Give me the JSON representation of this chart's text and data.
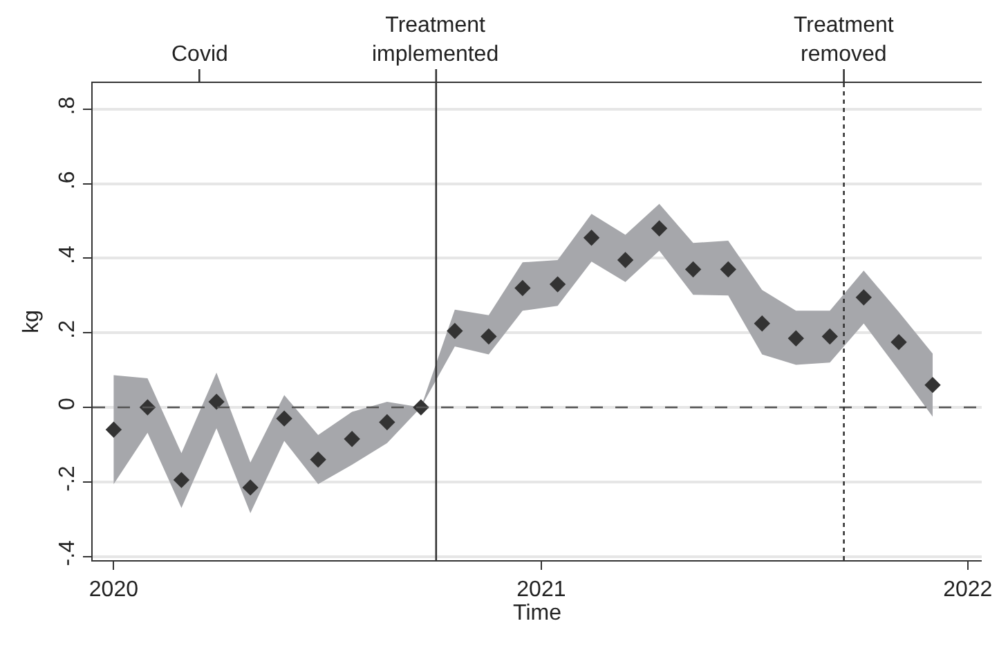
{
  "chart_data": {
    "type": "scatter",
    "xlabel": "Time",
    "ylabel": "kg",
    "x": [
      "2020-01-01",
      "2020-01-30",
      "2020-02-28",
      "2020-03-29",
      "2020-04-27",
      "2020-05-26",
      "2020-06-24",
      "2020-07-23",
      "2020-08-22",
      "2020-09-20",
      "2020-10-19",
      "2020-11-17",
      "2020-12-16",
      "2021-01-15",
      "2021-02-13",
      "2021-03-14",
      "2021-04-12",
      "2021-05-11",
      "2021-06-10",
      "2021-07-09",
      "2021-08-07",
      "2021-09-05",
      "2021-10-04",
      "2021-11-03",
      "2021-12-02"
    ],
    "series": [
      {
        "color": "#333333",
        "marker": "diamond",
        "values": [
          -0.06,
          0.0,
          -0.195,
          0.015,
          -0.215,
          -0.03,
          -0.14,
          -0.085,
          -0.04,
          0.0,
          0.205,
          0.19,
          0.32,
          0.33,
          0.455,
          0.395,
          0.48,
          0.37,
          0.37,
          0.225,
          0.185,
          0.19,
          0.295,
          0.175,
          0.06
        ],
        "lower": [
          -0.206,
          -0.068,
          -0.27,
          -0.056,
          -0.284,
          -0.09,
          -0.206,
          -0.154,
          -0.096,
          0.0,
          0.163,
          0.142,
          0.259,
          0.272,
          0.391,
          0.336,
          0.42,
          0.302,
          0.3,
          0.142,
          0.114,
          0.12,
          0.225,
          0.099,
          -0.025
        ],
        "upper": [
          0.086,
          0.078,
          -0.123,
          0.093,
          -0.148,
          0.033,
          -0.074,
          -0.012,
          0.015,
          0.0,
          0.262,
          0.247,
          0.389,
          0.395,
          0.519,
          0.463,
          0.546,
          0.441,
          0.447,
          0.315,
          0.259,
          0.259,
          0.367,
          0.256,
          0.144
        ]
      }
    ],
    "xlim": [
      "2019-12-14",
      "2022-01-13"
    ],
    "xticks": [
      "2020",
      "2021",
      "2022"
    ],
    "ylim": [
      -0.41,
      0.87
    ],
    "yticks": [
      {
        "value": -0.4,
        "label": "-.4"
      },
      {
        "value": -0.2,
        "label": "-.2"
      },
      0,
      {
        "value": 0.2,
        "label": ".2"
      },
      {
        "value": 0.4,
        "label": ".4"
      },
      {
        "value": 0.6,
        "label": ".6"
      },
      {
        "value": 0.8,
        "label": ".8"
      }
    ],
    "grid": "y",
    "ref_lines": [
      {
        "axis": "y",
        "value": 0,
        "color": "#555555",
        "line_style": "dashed"
      },
      {
        "axis": "x",
        "value": "2020-10-03",
        "label": "Treatment\nimplemented",
        "color": "#333333",
        "line_style": "solid"
      },
      {
        "axis": "x",
        "value": "2021-09-17",
        "label": "Treatment\nremoved",
        "color": "#333333",
        "line_style": "dotted"
      }
    ],
    "annotations": [
      "Covid"
    ]
  }
}
